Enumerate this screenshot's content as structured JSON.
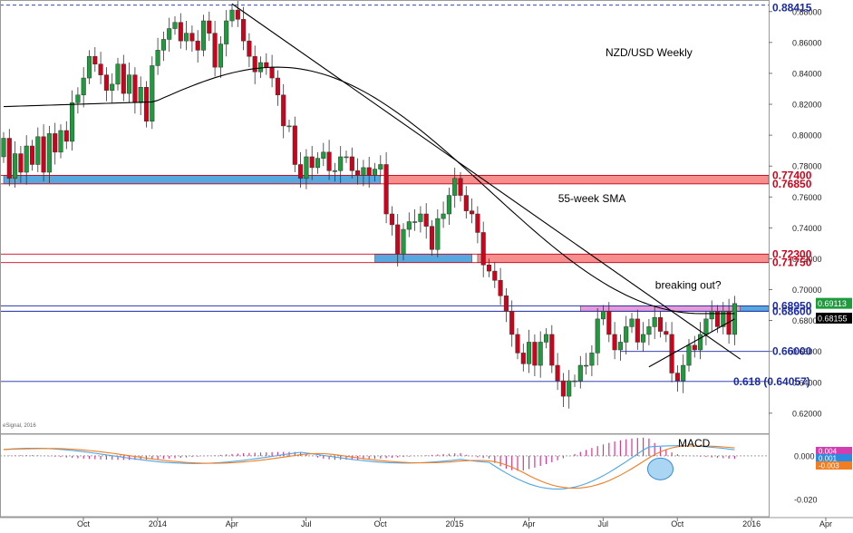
{
  "chart_data": {
    "type": "candlestick",
    "title": "NZD/USD Weekly",
    "watermark": "eSignal, 2016",
    "price_axis": {
      "ylim": [
        0.607,
        0.8875
      ],
      "ticks": [
        "0.88000",
        "0.86000",
        "0.84000",
        "0.82000",
        "0.80000",
        "0.78000",
        "0.76000",
        "0.74000",
        "0.72000",
        "0.70000",
        "0.68000",
        "0.66000",
        "0.64000",
        "0.62000"
      ]
    },
    "time_axis": {
      "labels": [
        {
          "text": "Oct",
          "t": 0
        },
        {
          "text": "2014",
          "t": 13
        },
        {
          "text": "Apr",
          "t": 26
        },
        {
          "text": "Jul",
          "t": 39
        },
        {
          "text": "Oct",
          "t": 52
        },
        {
          "text": "2015",
          "t": 65
        },
        {
          "text": "Apr",
          "t": 78
        },
        {
          "text": "Jul",
          "t": 91
        },
        {
          "text": "Oct",
          "t": 104
        },
        {
          "text": "2016",
          "t": 117
        },
        {
          "text": "Apr",
          "t": 130
        }
      ]
    },
    "closes": [
      0.798,
      0.772,
      0.788,
      0.776,
      0.793,
      0.781,
      0.799,
      0.776,
      0.801,
      0.789,
      0.803,
      0.796,
      0.821,
      0.826,
      0.837,
      0.851,
      0.846,
      0.839,
      0.829,
      0.833,
      0.846,
      0.827,
      0.839,
      0.821,
      0.831,
      0.809,
      0.845,
      0.855,
      0.862,
      0.869,
      0.873,
      0.861,
      0.866,
      0.861,
      0.855,
      0.874,
      0.866,
      0.844,
      0.859,
      0.874,
      0.881,
      0.875,
      0.861,
      0.851,
      0.841,
      0.847,
      0.844,
      0.837,
      0.826,
      0.806,
      0.806,
      0.781,
      0.772,
      0.786,
      0.779,
      0.785,
      0.789,
      0.777,
      0.777,
      0.786,
      0.786,
      0.777,
      0.774,
      0.779,
      0.774,
      0.778,
      0.781,
      0.749,
      0.742,
      0.723,
      0.739,
      0.744,
      0.744,
      0.749,
      0.741,
      0.726,
      0.746,
      0.749,
      0.761,
      0.772,
      0.761,
      0.751,
      0.749,
      0.737,
      0.716,
      0.712,
      0.706,
      0.696,
      0.686,
      0.671,
      0.659,
      0.652,
      0.666,
      0.651,
      0.666,
      0.671,
      0.651,
      0.641,
      0.631,
      0.641,
      0.641,
      0.651,
      0.651,
      0.659,
      0.681,
      0.686,
      0.671,
      0.661,
      0.666,
      0.676,
      0.681,
      0.666,
      0.671,
      0.676,
      0.682,
      0.673,
      0.671,
      0.646,
      0.641,
      0.651,
      0.664,
      0.661,
      0.671,
      0.681,
      0.686,
      0.676,
      0.686,
      0.671,
      0.691
    ],
    "series": [
      {
        "name": "55-week SMA",
        "y0": 0.8185,
        "peak_t": 48,
        "peak_y": 0.844,
        "end_y": 0.6845,
        "color": "#000000"
      }
    ],
    "trendlines": [
      {
        "t1": 40,
        "y1": 0.885,
        "t2": 129,
        "y2": 0.655
      },
      {
        "t1": 113,
        "y1": 0.65,
        "t2": 128,
        "y2": 0.681
      }
    ],
    "zones": [
      {
        "kind": "resistance-band",
        "y1": 0.7685,
        "y2": 0.774,
        "t_start": 67,
        "color": "#f47a7a"
      },
      {
        "kind": "support-band",
        "y1": 0.7685,
        "y2": 0.774,
        "t_start": 0,
        "t_end": 66,
        "color": "#3a99d8"
      },
      {
        "kind": "resistance-band",
        "y1": 0.7175,
        "y2": 0.723,
        "t_start": 83,
        "color": "#f47a7a"
      },
      {
        "kind": "support-band",
        "y1": 0.7175,
        "y2": 0.723,
        "t_start": 65,
        "t_end": 82,
        "color": "#3a99d8"
      },
      {
        "kind": "breakout-band",
        "y1": 0.686,
        "y2": 0.6895,
        "t_start": 101,
        "t_end": 129,
        "color": "#e488d0"
      },
      {
        "kind": "breakout-band-right",
        "y1": 0.686,
        "y2": 0.6895,
        "t_start": 129,
        "color": "#3a99d8"
      }
    ],
    "levels": [
      {
        "y": 0.88415,
        "label": "0.88415",
        "style": "dashed"
      },
      {
        "y": 0.774,
        "label": "0.77400",
        "color": "#d0021b"
      },
      {
        "y": 0.7685,
        "label": "0.76850",
        "color": "#d0021b"
      },
      {
        "y": 0.723,
        "label": "0.72300",
        "color": "#d0021b"
      },
      {
        "y": 0.7175,
        "label": "0.71750",
        "color": "#d0021b"
      },
      {
        "y": 0.6895,
        "label": "0.68950",
        "color": "#1a2aa8"
      },
      {
        "y": 0.686,
        "label": "0.68600",
        "color": "#1a2aa8"
      },
      {
        "y": 0.66,
        "label": "0.66000",
        "color": "#1a2aa8",
        "t_start": 108
      },
      {
        "y": 0.64057,
        "label": "0.618 (0.64057)",
        "color": "#1a2aa8"
      }
    ],
    "price_badges": [
      {
        "y": 0.69113,
        "label": "0.69113",
        "color": "#1e9b3c"
      },
      {
        "y": 0.68155,
        "label": "0.68155",
        "color": "#000000"
      }
    ],
    "annotations": [
      {
        "text": "55-week SMA",
        "t": 99,
        "y": 0.759
      },
      {
        "text": "breaking out?",
        "t": 116,
        "y": 0.703
      }
    ],
    "macd": {
      "label": "MACD",
      "ylim": [
        -0.028,
        0.01
      ],
      "ticks": [
        "0.000",
        "-0.020"
      ],
      "badges": [
        {
          "label": "0.004",
          "color": "#d23db0"
        },
        {
          "label": "0.001",
          "color": "#2b8be0"
        },
        {
          "label": "-0.003",
          "color": "#f07d21"
        }
      ],
      "macd_line_color": "#4ea6e6",
      "signal_line_color": "#f07d21",
      "hist_color": "#d9378f",
      "highlight": {
        "t": 115,
        "v": -0.006,
        "color": "#8ec8f0"
      }
    }
  }
}
